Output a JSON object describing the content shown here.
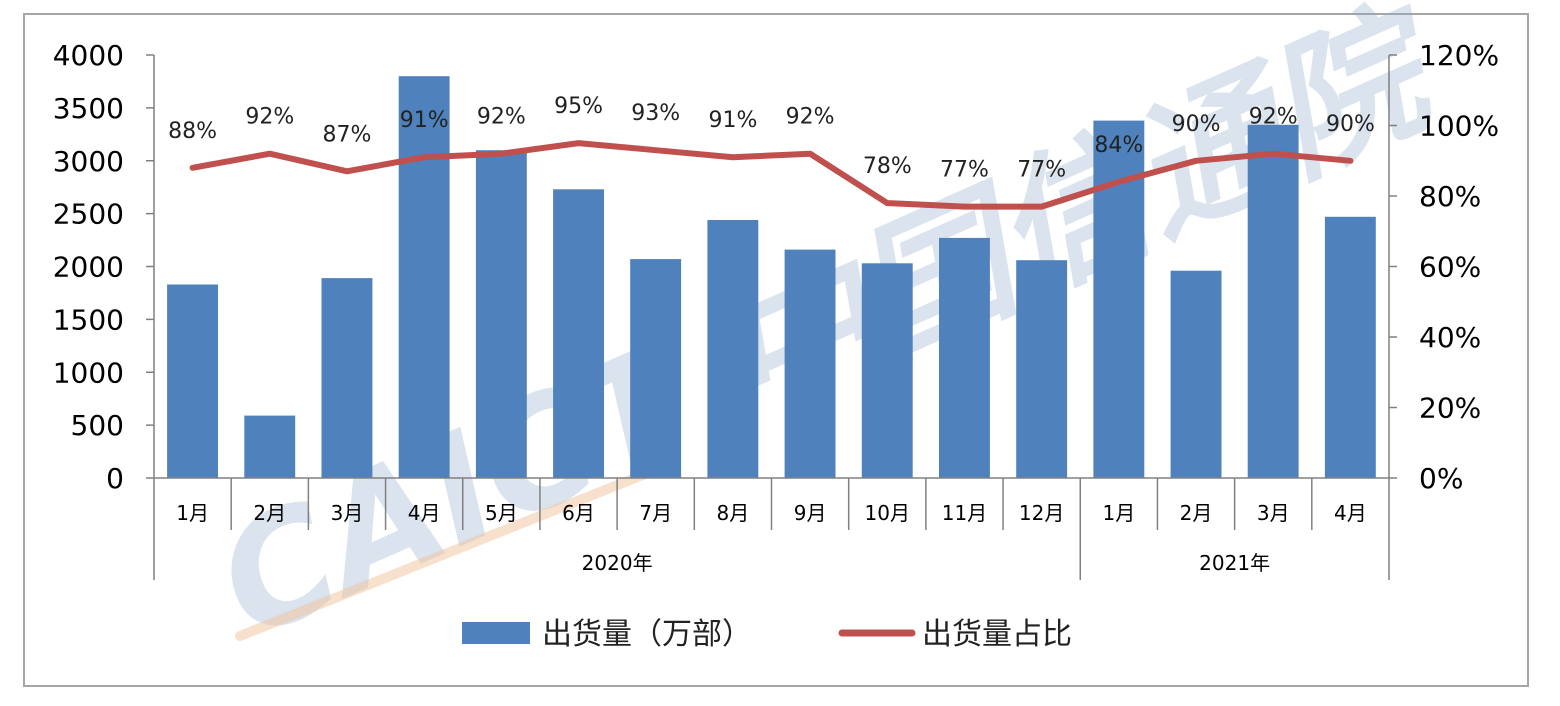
{
  "chart_data": {
    "type": "bar",
    "combo": "bar + line (secondary axis)",
    "categories": [
      "1月",
      "2月",
      "3月",
      "4月",
      "5月",
      "6月",
      "7月",
      "8月",
      "9月",
      "10月",
      "11月",
      "12月",
      "1月",
      "2月",
      "3月",
      "4月"
    ],
    "groups": [
      {
        "label": "2020年",
        "from": 0,
        "to": 11
      },
      {
        "label": "2021年",
        "from": 12,
        "to": 15
      }
    ],
    "series": [
      {
        "name": "出货量（万部）",
        "type": "bar",
        "axis": "left",
        "color": "#4f81bd",
        "values": [
          1830,
          590,
          1890,
          3800,
          3100,
          2730,
          2070,
          2440,
          2160,
          2030,
          2270,
          2060,
          3380,
          1960,
          3340,
          2470
        ]
      },
      {
        "name": "出货量占比",
        "type": "line",
        "axis": "right",
        "color": "#c0504d",
        "values": [
          88,
          92,
          87,
          91,
          92,
          95,
          93,
          91,
          92,
          78,
          77,
          77,
          84,
          90,
          92,
          90
        ],
        "labels": [
          "88%",
          "92%",
          "87%",
          "91%",
          "92%",
          "95%",
          "93%",
          "91%",
          "92%",
          "78%",
          "77%",
          "77%",
          "84%",
          "90%",
          "92%",
          "90%"
        ]
      }
    ],
    "y_left": {
      "min": 0,
      "max": 4000,
      "step": 500,
      "ticks": [
        "0",
        "500",
        "1000",
        "1500",
        "2000",
        "2500",
        "3000",
        "3500",
        "4000"
      ]
    },
    "y_right": {
      "min": 0,
      "max": 120,
      "step": 20,
      "ticks": [
        "0%",
        "20%",
        "40%",
        "60%",
        "80%",
        "100%",
        "120%"
      ]
    },
    "grid": false,
    "legend_position": "bottom",
    "watermark": "CAICT 中国信通院"
  }
}
